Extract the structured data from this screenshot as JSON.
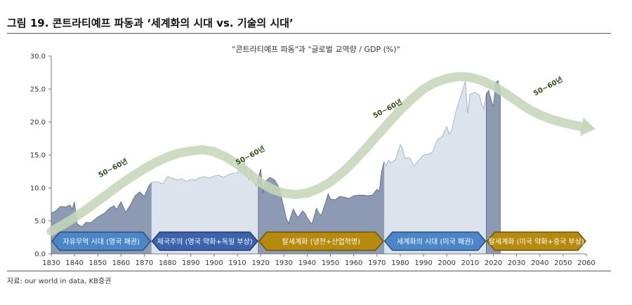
{
  "figure": {
    "title": "그림 19. 콘트라티예프 파동과 ‘세계화의 시대 vs. 기술의 시대’",
    "source": "자료: our world in data, KB증권"
  },
  "chart_data": {
    "type": "area",
    "title": "\"콘트라티예프 파동\"과 \"글로벌 교역량 / GDP (%)\"",
    "xlabel": "",
    "ylabel": "",
    "xlim": [
      1830,
      2060
    ],
    "ylim": [
      0,
      30
    ],
    "xticks": [
      "1830",
      "1840",
      "1850",
      "1860",
      "1870",
      "1880",
      "1890",
      "1900",
      "1910",
      "1920",
      "1930",
      "1940",
      "1950",
      "1960",
      "1970",
      "1980",
      "1990",
      "2000",
      "2010",
      "2020",
      "2030",
      "2040",
      "2050",
      "2060"
    ],
    "yticks": [
      "0.0",
      "5.0",
      "10.0",
      "15.0",
      "20.0",
      "25.0",
      "30.0"
    ],
    "series": [
      {
        "name": "글로벌 교역량 / GDP (%)",
        "color": "#a8b3c7",
        "x": [
          1830,
          1832,
          1834,
          1836,
          1838,
          1839,
          1840,
          1841,
          1843,
          1845,
          1847,
          1850,
          1853,
          1855,
          1857,
          1858,
          1860,
          1862,
          1864,
          1866,
          1868,
          1870,
          1872,
          1873,
          1874,
          1876,
          1878,
          1880,
          1882,
          1884,
          1886,
          1888,
          1890,
          1892,
          1894,
          1896,
          1898,
          1900,
          1902,
          1904,
          1906,
          1908,
          1910,
          1911,
          1912,
          1913,
          1914,
          1915,
          1916,
          1918,
          1919,
          1920,
          1921,
          1922,
          1924,
          1926,
          1928,
          1930,
          1931,
          1932,
          1934,
          1936,
          1938,
          1939,
          1940,
          1942,
          1944,
          1945,
          1946,
          1948,
          1949,
          1950,
          1952,
          1954,
          1956,
          1958,
          1960,
          1962,
          1964,
          1966,
          1968,
          1970,
          1971,
          1972,
          1973,
          1974,
          1975,
          1976,
          1978,
          1980,
          1981,
          1982,
          1984,
          1986,
          1988,
          1990,
          1992,
          1994,
          1996,
          1998,
          2000,
          2001,
          2002,
          2004,
          2006,
          2008,
          2009,
          2010,
          2012,
          2014,
          2015,
          2016,
          2017,
          2018,
          2019,
          2020,
          2021,
          2022,
          2023
        ],
        "values": [
          6.2,
          6.5,
          7.2,
          7.1,
          7.4,
          6.8,
          7.9,
          4.6,
          4.1,
          4.8,
          4.7,
          5.6,
          6.2,
          6.9,
          7.3,
          6.7,
          7.9,
          6.3,
          7.4,
          8.8,
          9.4,
          8.7,
          10.3,
          10.8,
          10.9,
          10.9,
          10.6,
          11.7,
          11.5,
          11.2,
          11.4,
          11.0,
          11.3,
          11.2,
          11.6,
          11.7,
          11.5,
          11.8,
          11.9,
          11.6,
          12.0,
          12.2,
          12.3,
          12.9,
          13.4,
          14.0,
          12.2,
          11.2,
          12.7,
          10.3,
          11.5,
          12.9,
          9.2,
          11.0,
          11.6,
          11.2,
          10.0,
          7.0,
          5.4,
          4.6,
          6.8,
          5.5,
          6.5,
          6.2,
          5.5,
          4.5,
          6.9,
          6.2,
          5.8,
          7.9,
          9.1,
          8.3,
          8.2,
          8.7,
          8.6,
          8.4,
          8.8,
          8.9,
          8.9,
          8.8,
          8.9,
          9.8,
          9.5,
          12.5,
          14.0,
          13.4,
          14.2,
          13.8,
          14.3,
          16.6,
          16.0,
          14.5,
          14.6,
          13.3,
          14.2,
          15.0,
          15.1,
          15.5,
          17.3,
          17.8,
          19.3,
          18.2,
          18.6,
          21.7,
          23.9,
          26.2,
          21.3,
          24.2,
          24.5,
          24.1,
          22.6,
          22.0,
          24.3,
          24.8,
          23.4,
          22.3,
          25.9,
          26.3,
          24.7
        ]
      },
      {
        "name": "콘트라티예프 파동",
        "color": "#cfdcc3",
        "x": [
          1830,
          1835,
          1840,
          1845,
          1850,
          1855,
          1860,
          1865,
          1870,
          1875,
          1880,
          1885,
          1890,
          1895,
          1900,
          1905,
          1910,
          1915,
          1920,
          1925,
          1930,
          1935,
          1940,
          1945,
          1950,
          1955,
          1960,
          1965,
          1970,
          1975,
          1980,
          1985,
          1990,
          1995,
          2000,
          2005,
          2010,
          2015,
          2020,
          2025,
          2030,
          2035,
          2040,
          2045,
          2050,
          2055,
          2058
        ],
        "values": [
          3.4,
          4.4,
          5.5,
          6.7,
          8.0,
          9.3,
          10.6,
          11.8,
          12.9,
          13.9,
          14.7,
          15.3,
          15.6,
          15.8,
          15.5,
          14.7,
          13.6,
          12.2,
          10.8,
          9.8,
          9.2,
          9.0,
          9.2,
          9.9,
          10.9,
          12.3,
          14.0,
          15.9,
          17.9,
          19.9,
          21.8,
          23.5,
          25.0,
          26.0,
          26.6,
          26.9,
          26.8,
          26.3,
          25.5,
          24.4,
          23.2,
          22.0,
          21.1,
          20.4,
          19.9,
          19.5,
          19.3
        ]
      }
    ],
    "wave_labels": [
      {
        "text": "50~60년",
        "x": 1857,
        "y": 12.7
      },
      {
        "text": "50~60년",
        "x": 1916,
        "y": 14.6
      },
      {
        "text": "50~60년",
        "x": 1975,
        "y": 21.7
      },
      {
        "text": "50~60년",
        "x": 2044,
        "y": 25.1
      }
    ],
    "eras": [
      {
        "label": "자유무역 시대 (영국 패권)",
        "start": 1830,
        "end": 1873,
        "fill": "#4a86c8",
        "stroke": "#2c4f7a"
      },
      {
        "label": "제국주의 (영국 약화+독일 부상)",
        "start": 1873,
        "end": 1919,
        "fill": "#3d63b0",
        "stroke": "#24396b"
      },
      {
        "label": "탈세계화 (냉전+산업혁명)",
        "start": 1919,
        "end": 1973,
        "fill": "#b68a0c",
        "stroke": "#6f5207"
      },
      {
        "label": "세계화의 시대 (미국 패권)",
        "start": 1973,
        "end": 2017,
        "fill": "#4a86c8",
        "stroke": "#2c4f7a"
      },
      {
        "label": "탈세계화 (미국 약화+중국 부상)",
        "start": 2017,
        "end": 2060,
        "fill": "#b68a0c",
        "stroke": "#6f5207"
      }
    ],
    "grid": false,
    "legend": "none"
  }
}
